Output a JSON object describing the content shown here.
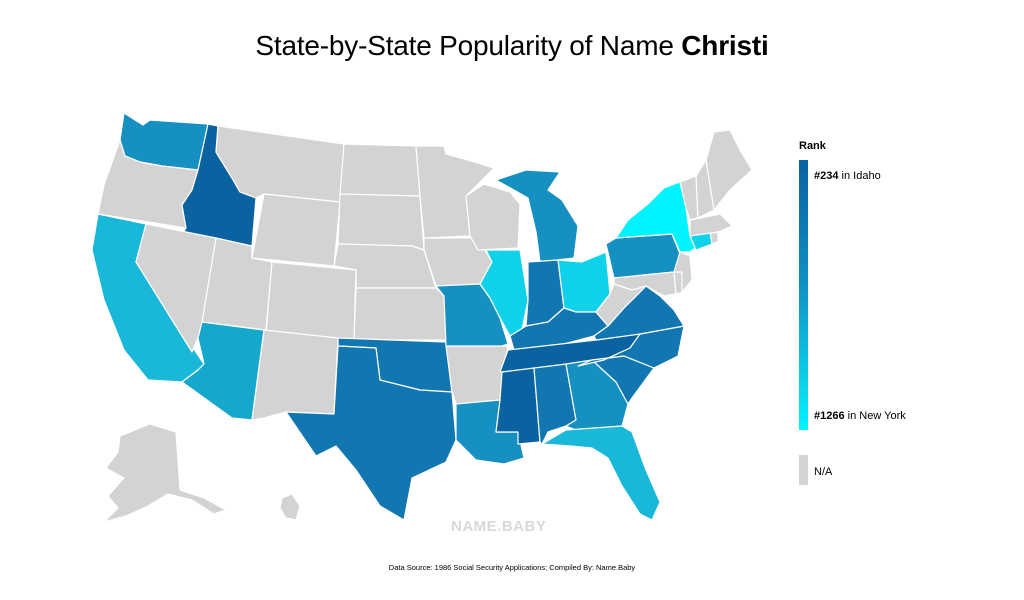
{
  "title": {
    "prefix": "State-by-State Popularity of Name ",
    "name": "Christi"
  },
  "legend": {
    "title": "Rank",
    "max_rank": "#234",
    "max_label": "in Idaho",
    "min_rank": "#1266",
    "min_label": "in New York",
    "na_label": "N/A"
  },
  "colors": {
    "darkest": "#0a63a0",
    "dark": "#1276b0",
    "mid": "#1590c0",
    "mid_light": "#16a8cc",
    "light": "#1ab8d8",
    "cyan": "#0fd2ea",
    "lightest": "#00f4ff",
    "na": "#d3d3d3"
  },
  "states": [
    {
      "name": "Idaho",
      "shade": "darkest"
    },
    {
      "name": "Washington",
      "shade": "mid"
    },
    {
      "name": "California",
      "shade": "light"
    },
    {
      "name": "Arizona",
      "shade": "mid_light"
    },
    {
      "name": "Texas",
      "shade": "dark"
    },
    {
      "name": "Oklahoma",
      "shade": "dark"
    },
    {
      "name": "Louisiana",
      "shade": "mid"
    },
    {
      "name": "Mississippi",
      "shade": "darkest"
    },
    {
      "name": "Alabama",
      "shade": "dark"
    },
    {
      "name": "Tennessee",
      "shade": "darkest"
    },
    {
      "name": "Georgia",
      "shade": "mid"
    },
    {
      "name": "Florida",
      "shade": "light"
    },
    {
      "name": "South Carolina",
      "shade": "dark"
    },
    {
      "name": "North Carolina",
      "shade": "dark"
    },
    {
      "name": "Virginia",
      "shade": "dark"
    },
    {
      "name": "Kentucky",
      "shade": "dark"
    },
    {
      "name": "Indiana",
      "shade": "dark"
    },
    {
      "name": "Illinois",
      "shade": "cyan"
    },
    {
      "name": "Missouri",
      "shade": "mid"
    },
    {
      "name": "Michigan",
      "shade": "mid"
    },
    {
      "name": "Ohio",
      "shade": "cyan"
    },
    {
      "name": "Pennsylvania",
      "shade": "mid"
    },
    {
      "name": "New York",
      "shade": "lightest"
    },
    {
      "name": "Connecticut",
      "shade": "cyan"
    },
    {
      "name": "Oregon",
      "shade": "na"
    },
    {
      "name": "Nevada",
      "shade": "na"
    },
    {
      "name": "Montana",
      "shade": "na"
    },
    {
      "name": "Wyoming",
      "shade": "na"
    },
    {
      "name": "Utah",
      "shade": "na"
    },
    {
      "name": "Colorado",
      "shade": "na"
    },
    {
      "name": "New Mexico",
      "shade": "na"
    },
    {
      "name": "North Dakota",
      "shade": "na"
    },
    {
      "name": "South Dakota",
      "shade": "na"
    },
    {
      "name": "Nebraska",
      "shade": "na"
    },
    {
      "name": "Kansas",
      "shade": "na"
    },
    {
      "name": "Minnesota",
      "shade": "na"
    },
    {
      "name": "Iowa",
      "shade": "na"
    },
    {
      "name": "Wisconsin",
      "shade": "na"
    },
    {
      "name": "Arkansas",
      "shade": "na"
    },
    {
      "name": "West Virginia",
      "shade": "na"
    },
    {
      "name": "Maryland",
      "shade": "na"
    },
    {
      "name": "Delaware",
      "shade": "na"
    },
    {
      "name": "New Jersey",
      "shade": "na"
    },
    {
      "name": "Vermont",
      "shade": "na"
    },
    {
      "name": "New Hampshire",
      "shade": "na"
    },
    {
      "name": "Maine",
      "shade": "na"
    },
    {
      "name": "Massachusetts",
      "shade": "na"
    },
    {
      "name": "Rhode Island",
      "shade": "na"
    },
    {
      "name": "Alaska",
      "shade": "na"
    },
    {
      "name": "Hawaii",
      "shade": "na"
    }
  ],
  "watermark": "NAME.BABY",
  "footer": "Data Source: 1986 Social Security Applications; Compiled By: Name.Baby"
}
